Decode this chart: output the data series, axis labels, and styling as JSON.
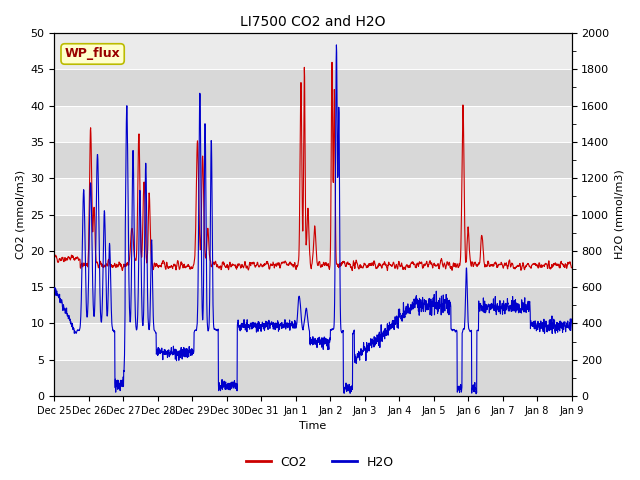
{
  "title": "LI7500 CO2 and H2O",
  "xlabel": "Time",
  "ylabel_left": "CO2 (mmol/m3)",
  "ylabel_right": "H2O (mmol/m3)",
  "co2_color": "#cc0000",
  "h2o_color": "#0000cc",
  "legend_co2": "CO2",
  "legend_h2o": "H2O",
  "annotation_text": "WP_flux",
  "annotation_bg": "#ffffcc",
  "annotation_border": "#bbbb00",
  "plot_bg_light": "#ebebeb",
  "plot_bg_dark": "#d8d8d8",
  "ylim_left": [
    0,
    50
  ],
  "ylim_right": [
    0,
    2000
  ],
  "yticks_left": [
    0,
    5,
    10,
    15,
    20,
    25,
    30,
    35,
    40,
    45,
    50
  ],
  "yticks_right": [
    0,
    200,
    400,
    600,
    800,
    1000,
    1200,
    1400,
    1600,
    1800,
    2000
  ],
  "xtick_labels": [
    "Dec 25",
    "Dec 26",
    "Dec 27",
    "Dec 28",
    "Dec 29",
    "Dec 30",
    "Dec 31",
    "Jan 1",
    "Jan 2",
    "Jan 3",
    "Jan 4",
    "Jan 5",
    "Jan 6",
    "Jan 7",
    "Jan 8",
    "Jan 9"
  ],
  "n_points": 2000,
  "figsize": [
    6.4,
    4.8
  ],
  "dpi": 100
}
